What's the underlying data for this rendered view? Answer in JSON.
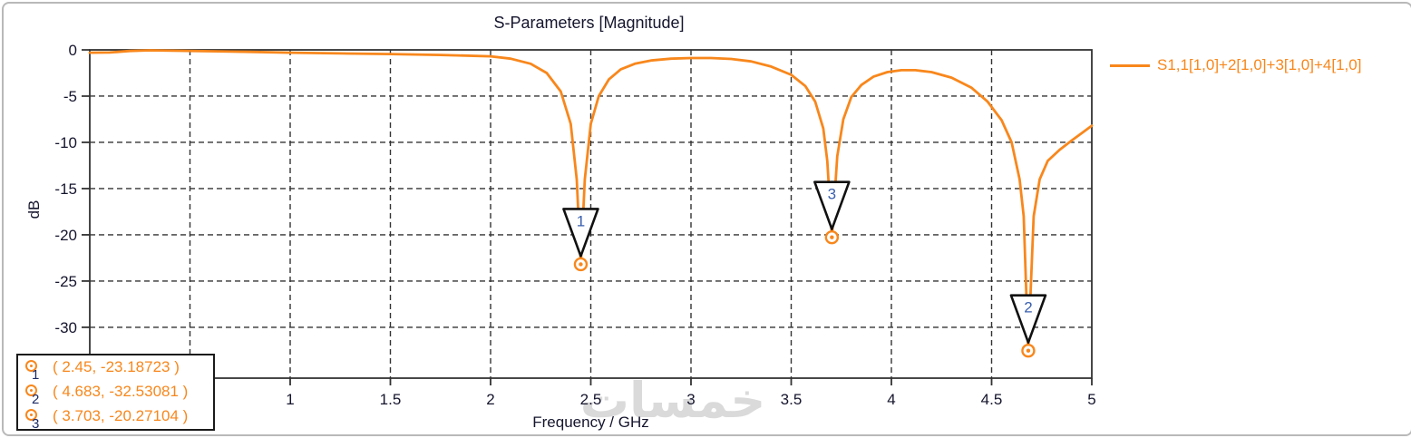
{
  "chart": {
    "title": "S-Parameters [Magnitude]",
    "ylabel": "dB",
    "xlabel": "Frequency / GHz",
    "legend": {
      "label": "S1,1[1,0]+2[1,0]+3[1,0]+4[1,0]",
      "color": "#f8871c"
    },
    "watermark": "خمسات",
    "marker_list": [
      {
        "id": "1",
        "text": "( 2.45, -23.18723 )"
      },
      {
        "id": "2",
        "text": "( 4.683, -32.53081 )"
      },
      {
        "id": "3",
        "text": "( 3.703, -20.27104 )"
      }
    ]
  },
  "colors": {
    "curve": "#f8871c",
    "frame": "#333333",
    "grid": "#333333",
    "tick_text": "#15152e",
    "marker_number": "#3a5fae",
    "watermark": "#dadada"
  },
  "chart_data": {
    "type": "line",
    "title": "S-Parameters [Magnitude]",
    "xlabel": "Frequency / GHz",
    "ylabel": "dB",
    "xlim": [
      0,
      5
    ],
    "ylim": [
      -35.5,
      0
    ],
    "grid": true,
    "grid_style": "dashed",
    "legend_position": "right-outside",
    "xticks": [
      {
        "v": 1,
        "label": "1"
      },
      {
        "v": 1.5,
        "label": "1.5"
      },
      {
        "v": 2,
        "label": "2"
      },
      {
        "v": 2.5,
        "label": "2.5"
      },
      {
        "v": 3,
        "label": "3"
      },
      {
        "v": 3.5,
        "label": "3.5"
      },
      {
        "v": 4,
        "label": "4"
      },
      {
        "v": 4.5,
        "label": "4.5"
      },
      {
        "v": 5,
        "label": "5"
      }
    ],
    "yticks": [
      {
        "v": 0,
        "label": "0"
      },
      {
        "v": -5,
        "label": "-5"
      },
      {
        "v": -10,
        "label": "-10"
      },
      {
        "v": -15,
        "label": "-15"
      },
      {
        "v": -20,
        "label": "-20"
      },
      {
        "v": -25,
        "label": "-25"
      },
      {
        "v": -30,
        "label": "-30"
      }
    ],
    "grid_x": [
      0.5,
      1,
      1.5,
      2,
      2.5,
      3,
      3.5,
      4,
      4.5
    ],
    "grid_y": [
      -5,
      -10,
      -15,
      -20,
      -25,
      -30
    ],
    "series": [
      {
        "name": "S1,1[1,0]+2[1,0]+3[1,0]+4[1,0]",
        "color": "#f8871c",
        "points": [
          [
            0.0,
            -0.3
          ],
          [
            0.1,
            -0.28
          ],
          [
            0.2,
            -0.12
          ],
          [
            0.3,
            -0.05
          ],
          [
            0.45,
            -0.1
          ],
          [
            0.6,
            -0.15
          ],
          [
            0.8,
            -0.22
          ],
          [
            1.0,
            -0.3
          ],
          [
            1.25,
            -0.38
          ],
          [
            1.5,
            -0.45
          ],
          [
            1.75,
            -0.55
          ],
          [
            2.0,
            -0.7
          ],
          [
            2.1,
            -0.95
          ],
          [
            2.2,
            -1.5
          ],
          [
            2.28,
            -2.5
          ],
          [
            2.35,
            -4.5
          ],
          [
            2.4,
            -8.0
          ],
          [
            2.43,
            -14.0
          ],
          [
            2.45,
            -23.18723
          ],
          [
            2.47,
            -14.0
          ],
          [
            2.5,
            -8.0
          ],
          [
            2.54,
            -5.0
          ],
          [
            2.59,
            -3.2
          ],
          [
            2.65,
            -2.1
          ],
          [
            2.72,
            -1.5
          ],
          [
            2.8,
            -1.15
          ],
          [
            2.9,
            -0.95
          ],
          [
            3.0,
            -0.88
          ],
          [
            3.1,
            -0.88
          ],
          [
            3.2,
            -0.98
          ],
          [
            3.3,
            -1.25
          ],
          [
            3.4,
            -1.8
          ],
          [
            3.5,
            -2.7
          ],
          [
            3.57,
            -3.9
          ],
          [
            3.62,
            -5.6
          ],
          [
            3.66,
            -8.5
          ],
          [
            3.68,
            -12.0
          ],
          [
            3.703,
            -20.27104
          ],
          [
            3.73,
            -11.5
          ],
          [
            3.76,
            -7.5
          ],
          [
            3.8,
            -5.1
          ],
          [
            3.85,
            -3.8
          ],
          [
            3.91,
            -2.9
          ],
          [
            3.98,
            -2.4
          ],
          [
            4.05,
            -2.2
          ],
          [
            4.12,
            -2.2
          ],
          [
            4.2,
            -2.4
          ],
          [
            4.3,
            -3.0
          ],
          [
            4.4,
            -4.1
          ],
          [
            4.48,
            -5.6
          ],
          [
            4.55,
            -7.6
          ],
          [
            4.6,
            -10.0
          ],
          [
            4.64,
            -14.0
          ],
          [
            4.66,
            -18.0
          ],
          [
            4.683,
            -32.53081
          ],
          [
            4.71,
            -18.0
          ],
          [
            4.74,
            -14.0
          ],
          [
            4.78,
            -12.0
          ],
          [
            4.84,
            -10.8
          ],
          [
            4.9,
            -9.8
          ],
          [
            4.95,
            -9.0
          ],
          [
            5.0,
            -8.2
          ]
        ]
      }
    ],
    "markers": [
      {
        "id": "1",
        "freq": 2.45,
        "db": -23.18723
      },
      {
        "id": "2",
        "freq": 4.683,
        "db": -32.53081
      },
      {
        "id": "3",
        "freq": 3.703,
        "db": -20.27104
      }
    ]
  }
}
